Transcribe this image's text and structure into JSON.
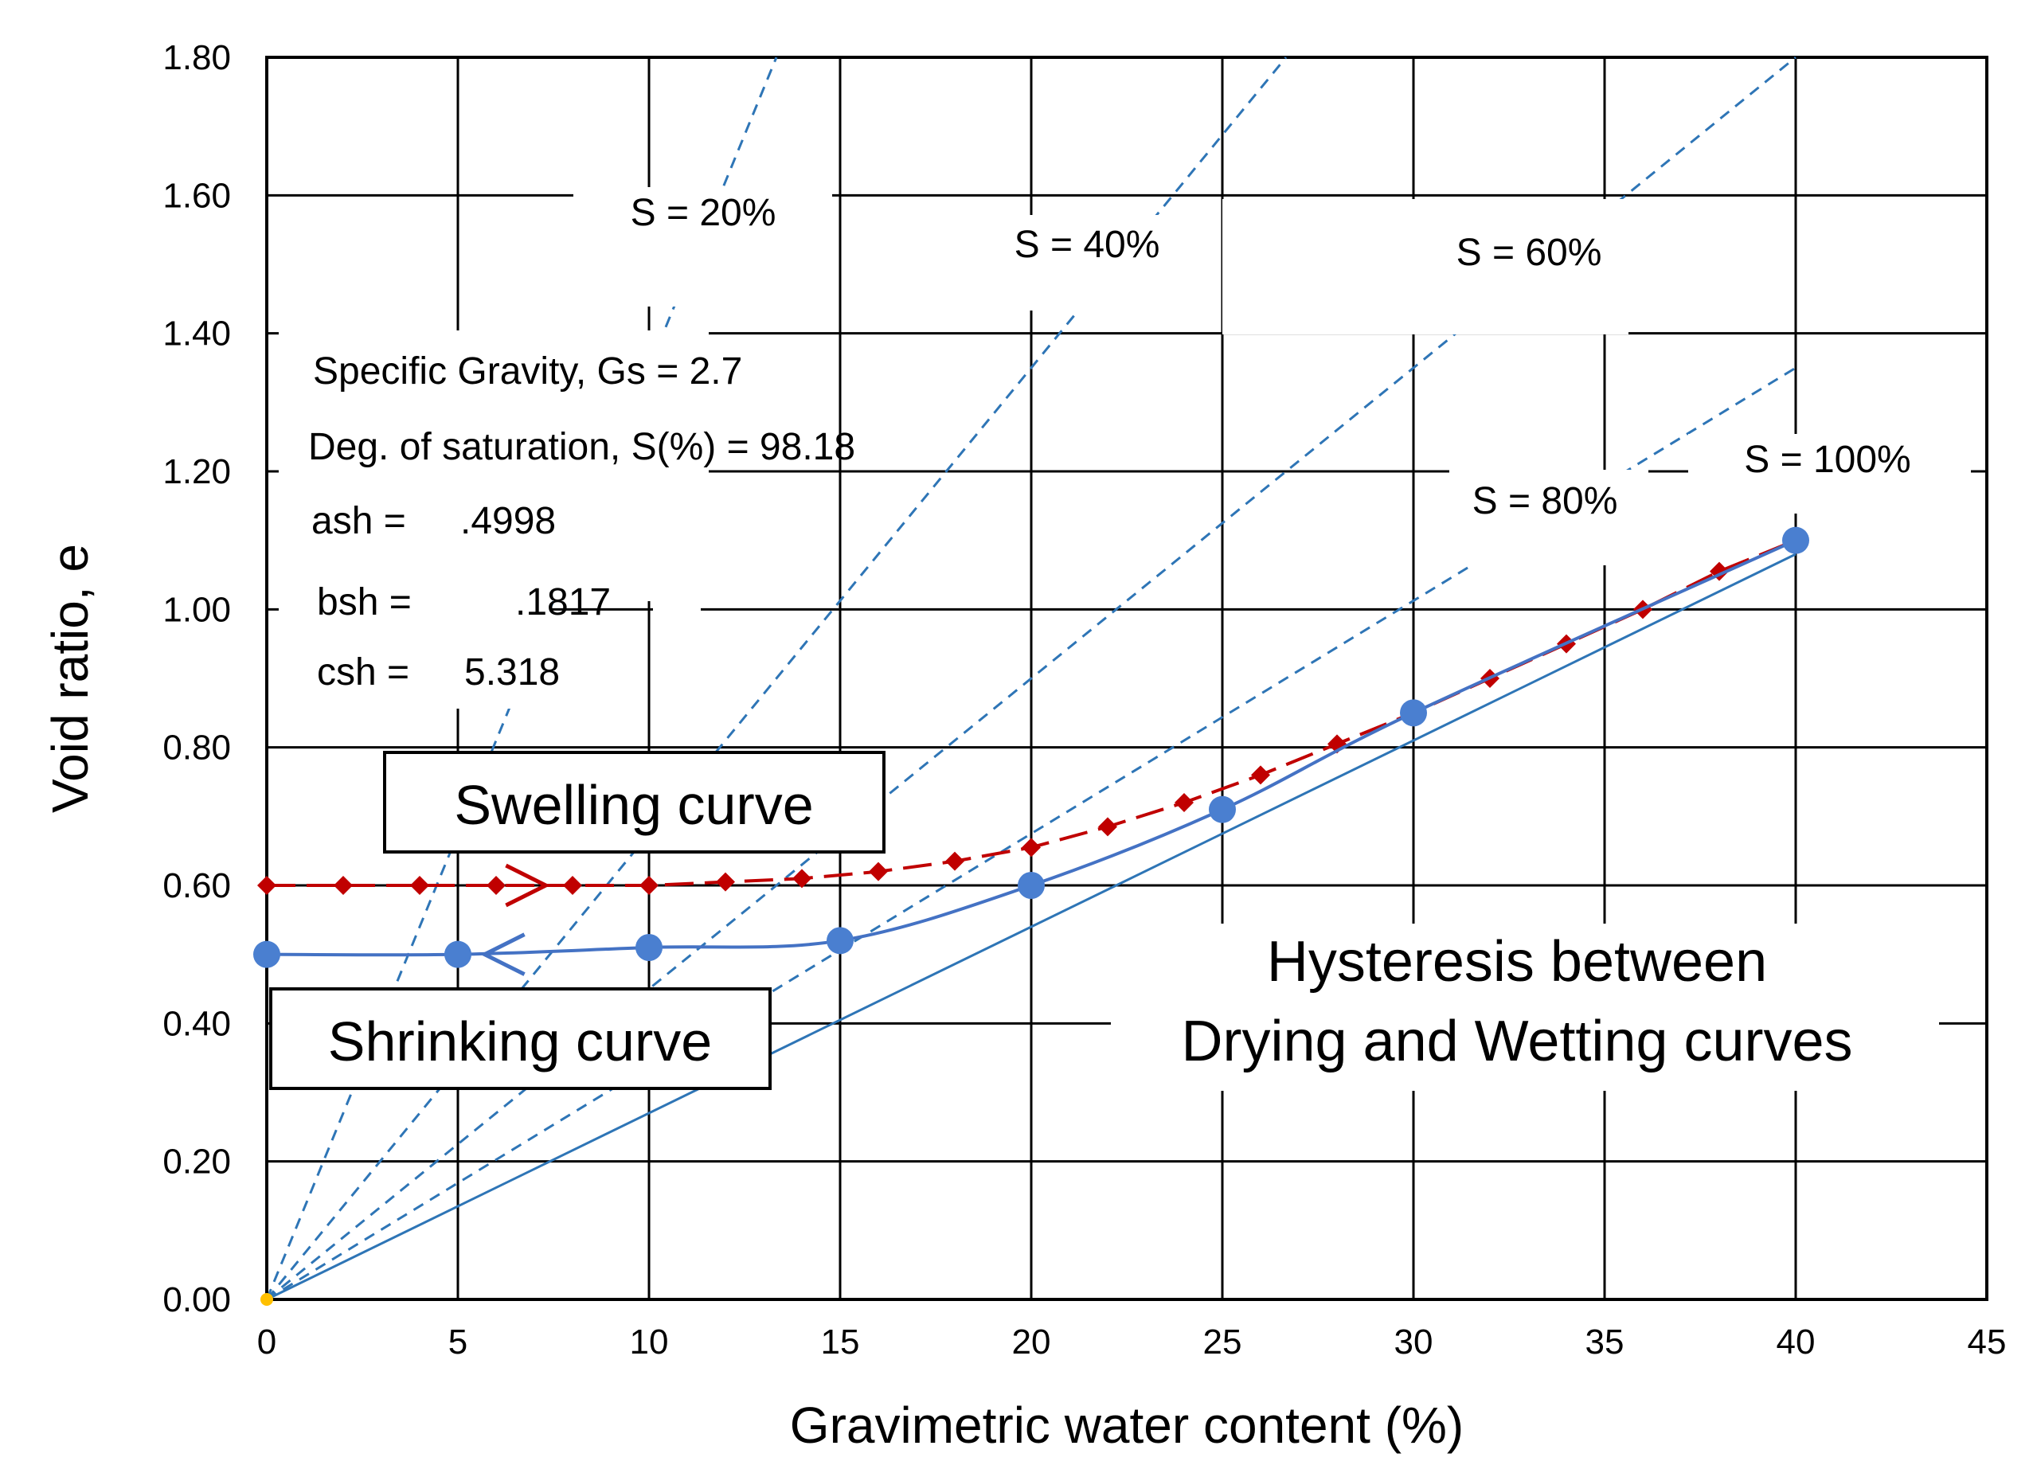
{
  "chart_data": {
    "type": "line",
    "title": "",
    "xlabel": "Gravimetric water content (%)",
    "ylabel": "Void ratio, e",
    "xlim": [
      0,
      45
    ],
    "ylim": [
      0,
      1.8
    ],
    "x_ticks": [
      0,
      5,
      10,
      15,
      20,
      25,
      30,
      35,
      40,
      45
    ],
    "y_ticks": [
      0.0,
      0.2,
      0.4,
      0.6,
      0.8,
      1.0,
      1.2,
      1.4,
      1.6,
      1.8
    ],
    "y_tick_labels": [
      "0.00",
      "0.20",
      "0.40",
      "0.60",
      "0.80",
      "1.00",
      "1.20",
      "1.40",
      "1.60",
      "1.80"
    ],
    "grid": true,
    "specific_gravity": 2.7,
    "series": [
      {
        "name": "Swelling curve",
        "style": "dashed",
        "color": "#c00000",
        "marker": "diamond",
        "x": [
          0,
          2,
          4,
          6,
          8,
          10,
          12,
          14,
          16,
          18,
          20,
          22,
          24,
          26,
          28,
          30,
          32,
          34,
          36,
          38,
          40
        ],
        "y": [
          0.6,
          0.6,
          0.6,
          0.6,
          0.6,
          0.6,
          0.605,
          0.61,
          0.62,
          0.635,
          0.655,
          0.685,
          0.72,
          0.76,
          0.805,
          0.85,
          0.9,
          0.95,
          1.0,
          1.055,
          1.1
        ]
      },
      {
        "name": "Shrinking curve",
        "style": "solid",
        "color": "#4472c4",
        "marker": "circle",
        "x": [
          0,
          5,
          10,
          15,
          20,
          25,
          30,
          40
        ],
        "y": [
          0.5,
          0.5,
          0.51,
          0.52,
          0.6,
          0.71,
          0.85,
          1.1
        ]
      }
    ],
    "saturation_lines": [
      {
        "label": "S = 20%",
        "s": 0.2,
        "style": "dashed"
      },
      {
        "label": "S = 40%",
        "s": 0.4,
        "style": "dashed"
      },
      {
        "label": "S = 60%",
        "s": 0.6,
        "style": "dashed"
      },
      {
        "label": "S = 80%",
        "s": 0.8,
        "style": "dashed"
      },
      {
        "label": "S = 100%",
        "s": 1.0,
        "style": "solid"
      }
    ],
    "parameters": {
      "gs_text": "Specific Gravity, Gs = 2.7",
      "sat_text": "Deg. of saturation, S(%) = 98.18",
      "ash_label": "ash =",
      "ash_value": ".4998",
      "bsh_label": "bsh =",
      "bsh_value": ".1817",
      "csh_label": "csh =",
      "csh_value": "5.318"
    },
    "annotations": {
      "swelling_label": "Swelling curve",
      "shrinking_label": "Shrinking curve",
      "hysteresis_line1": "Hysteresis between",
      "hysteresis_line2": "Drying and Wetting curves"
    },
    "colors": {
      "swelling": "#c00000",
      "shrinking_line": "#4472c4",
      "shrinking_marker": "#4a7fd0",
      "saturation": "#2e75b6",
      "origin_marker": "#ffc000",
      "grid": "#000000"
    }
  }
}
